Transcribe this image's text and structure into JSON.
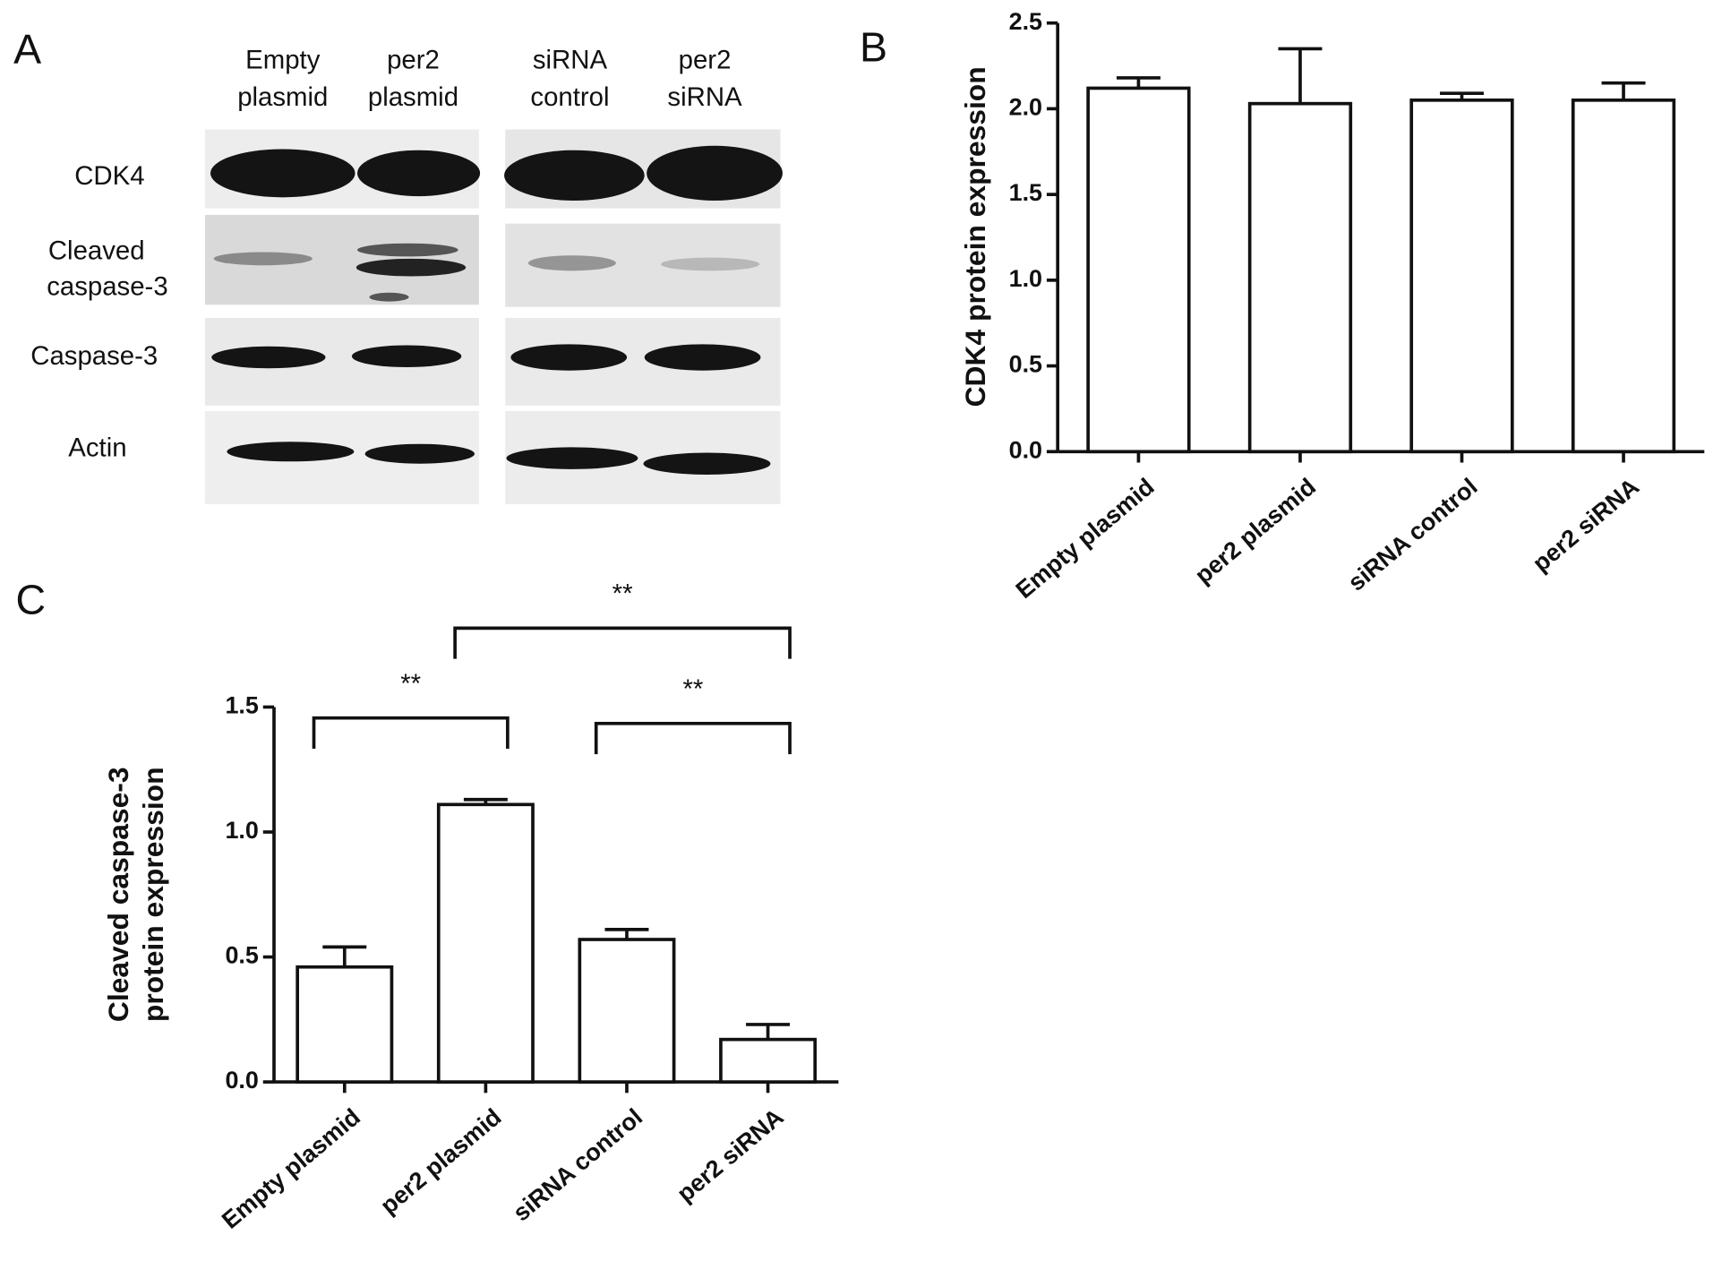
{
  "panel_labels": [
    "A",
    "B",
    "C"
  ],
  "blot": {
    "lanes": [
      [
        "Empty",
        "plasmid"
      ],
      [
        "per2",
        "plasmid"
      ],
      [
        "siRNA",
        "control"
      ],
      [
        "per2",
        "siRNA"
      ]
    ],
    "bands": [
      [
        "CDK4"
      ],
      [
        "Cleaved",
        "caspase-3"
      ],
      [
        "Caspase-3"
      ],
      [
        "Actin"
      ]
    ]
  },
  "chart_data": [
    {
      "type": "bar",
      "y_label": [
        "CDK4 protein expression"
      ],
      "categories": [
        "Empty plasmid",
        "per2 plasmid",
        "siRNA control",
        "per2 siRNA"
      ],
      "values": [
        2.12,
        2.03,
        2.05,
        2.05
      ],
      "errors": [
        0.06,
        0.32,
        0.04,
        0.1
      ],
      "color": "#ffffff",
      "ylim": [
        0,
        2.5
      ],
      "yticks": [
        {
          "value": 0,
          "label": "0.0"
        },
        0.5,
        {
          "value": 1,
          "label": "1.0"
        },
        1.5,
        {
          "value": 2,
          "label": "2.0"
        },
        2.5
      ]
    },
    {
      "type": "bar",
      "y_label": [
        "Cleaved caspase-3",
        "protein expression"
      ],
      "categories": [
        "Empty plasmid",
        "per2 plasmid",
        "siRNA control",
        "per2 siRNA"
      ],
      "values": [
        0.46,
        1.11,
        0.57,
        0.17
      ],
      "errors": [
        0.08,
        0.02,
        0.04,
        0.06
      ],
      "color": "#ffffff",
      "ylim": [
        0,
        1.5
      ],
      "yticks": [
        {
          "value": 0,
          "label": "0.0"
        },
        0.5,
        {
          "value": 1,
          "label": "1.0"
        },
        1.5
      ],
      "comparisons": [
        {
          "from": 0,
          "to": 1,
          "label": "**"
        },
        {
          "from": 1,
          "to": 3,
          "label": "**"
        },
        {
          "from": 2,
          "to": 3,
          "label": "**"
        }
      ]
    }
  ]
}
